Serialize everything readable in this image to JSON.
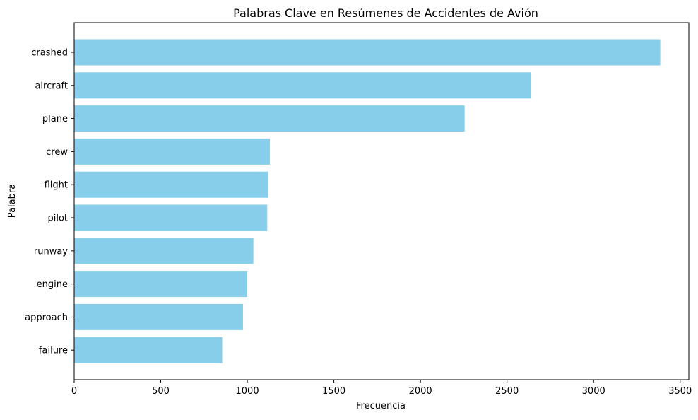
{
  "chart_data": {
    "type": "bar",
    "orientation": "horizontal",
    "title": "Palabras Clave en Resúmenes de Accidentes de Avión",
    "xlabel": "Frecuencia",
    "ylabel": "Palabra",
    "categories": [
      "crashed",
      "aircraft",
      "plane",
      "crew",
      "flight",
      "pilot",
      "runway",
      "engine",
      "approach",
      "failure"
    ],
    "values": [
      3385,
      2640,
      2255,
      1130,
      1120,
      1115,
      1035,
      1000,
      975,
      855
    ],
    "xlim": [
      0,
      3550
    ],
    "xticks": [
      0,
      500,
      1000,
      1500,
      2000,
      2500,
      3000,
      3500
    ],
    "bar_color": "#87ceeb",
    "grid": false,
    "legend": "none"
  }
}
